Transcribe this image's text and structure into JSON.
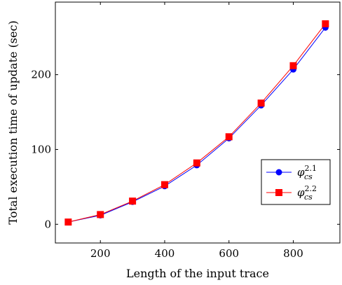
{
  "chart_data": {
    "type": "line",
    "xlabel": "Length of the input trace",
    "ylabel": "Total execution time of update (sec)",
    "xlim": [
      60,
      945
    ],
    "ylim": [
      -25,
      297
    ],
    "xticks": [
      200,
      400,
      600,
      800
    ],
    "yticks": [
      0,
      100,
      200
    ],
    "x": [
      100,
      200,
      300,
      400,
      500,
      600,
      700,
      800,
      900
    ],
    "series": [
      {
        "label_base": "φ",
        "label_sup": "2.1",
        "label_sub": "cs",
        "color": "#0000ff",
        "marker": "circle",
        "values": [
          3,
          12,
          30,
          51,
          79,
          115,
          159,
          207,
          263
        ]
      },
      {
        "label_base": "φ",
        "label_sup": "2.2",
        "label_sub": "cs",
        "color": "#ff0000",
        "marker": "square",
        "values": [
          3,
          13,
          31,
          53,
          82,
          117,
          162,
          212,
          268
        ]
      }
    ],
    "grid": false,
    "legend_position": "right"
  }
}
